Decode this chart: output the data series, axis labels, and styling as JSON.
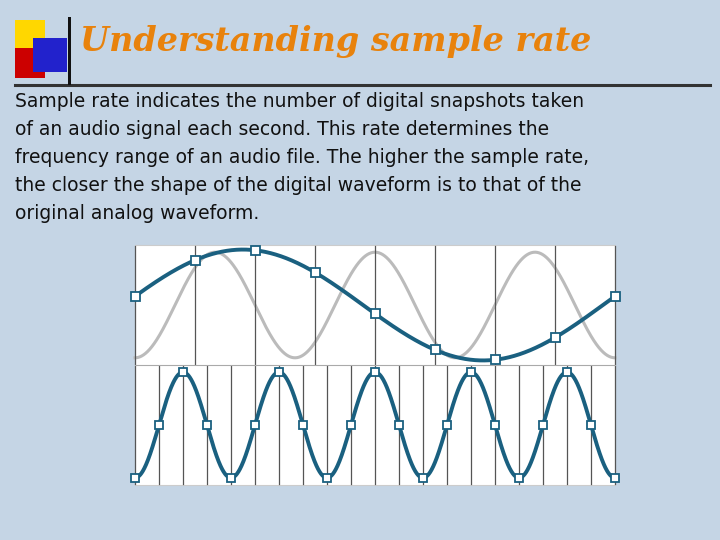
{
  "title": "Understanding sample rate",
  "title_color": "#E8820C",
  "title_fontsize": 24,
  "bg_color": "#C5D5E5",
  "body_text": "Sample rate indicates the number of digital snapshots taken\nof an audio signal each second. This rate determines the\nfrequency range of an audio file. The higher the sample rate,\nthe closer the shape of the digital waveform is to that of the\noriginal analog waveform.",
  "body_fontsize": 13.5,
  "body_color": "#111111",
  "wave_bg": "#FFFFFF",
  "analog_color": "#BBBBBB",
  "digital_color": "#1A6080",
  "digital_linewidth": 2.8,
  "analog_linewidth": 2.2,
  "sample_marker_color": "#FFFFFF",
  "sample_marker_edge": "#1A6080",
  "vline_color": "#555555",
  "vline_linewidth": 0.9
}
